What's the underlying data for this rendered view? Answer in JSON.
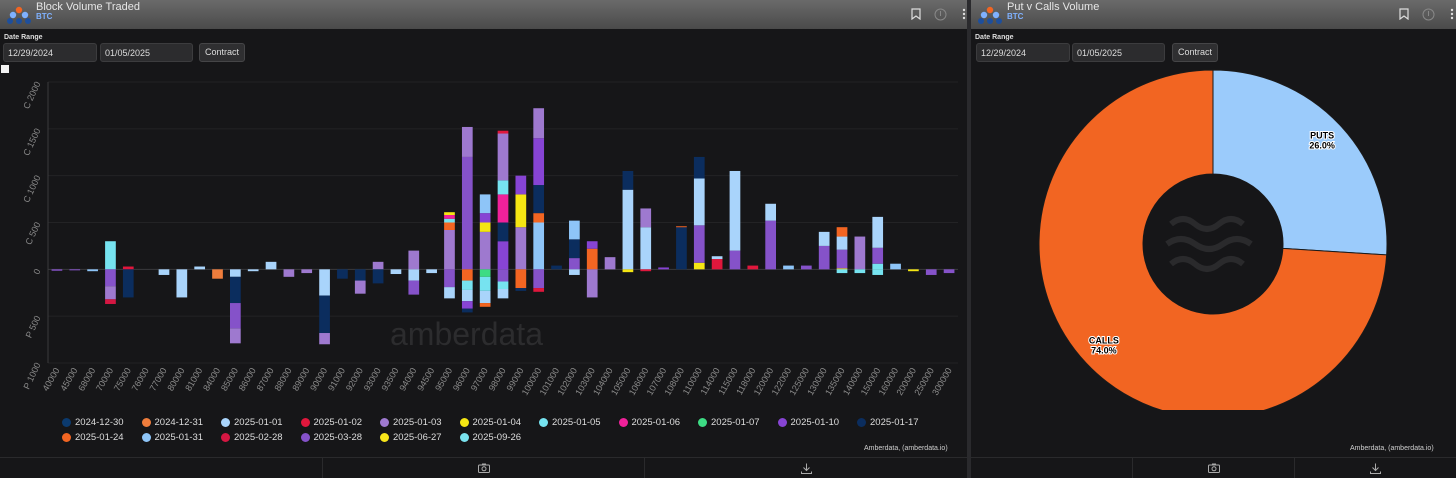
{
  "left": {
    "title": "Block Volume Traded",
    "asset": "BTC",
    "date_range_label": "Date Range",
    "date_from": "12/29/2024",
    "date_to": "01/05/2025",
    "contract_button": "Contract",
    "credit": "Amberdata, (amberdata.io)",
    "watermark": "amberdata",
    "icons": [
      "bookmark-icon",
      "info-icon",
      "more-icon",
      "camera-icon",
      "download-icon"
    ]
  },
  "right": {
    "title": "Put v Calls Volume",
    "asset": "BTC",
    "date_range_label": "Date Range",
    "date_from": "12/29/2024",
    "date_to": "01/05/2025",
    "contract_button": "Contract",
    "credit": "Amberdata, (amberdata.io)",
    "icons": [
      "bookmark-icon",
      "info-icon",
      "more-icon",
      "camera-icon",
      "download-icon"
    ]
  },
  "colors": {
    "2024-12-30": "#0b3a6e",
    "2024-12-31": "#ef7d3c",
    "2025-01-01": "#a9d4fb",
    "2025-01-02": "#e0173c",
    "2025-01-03": "#9e79cf",
    "2025-01-04": "#f5e613",
    "2025-01-05": "#76e3f0",
    "2025-01-06": "#f0219a",
    "2025-01-07": "#3ddc84",
    "2025-01-10": "#8744d4",
    "2025-01-17": "#0b2d5e",
    "2025-01-24": "#f26522",
    "2025-01-31": "#8ec5f8",
    "2025-02-28": "#d41742",
    "2025-03-28": "#8552c9",
    "2025-06-27": "#f7e51a",
    "2025-09-26": "#7ae2ee"
  },
  "chart_data": [
    {
      "type": "bar",
      "title": "Block Volume Traded",
      "stacked": true,
      "ylabel_call": "C",
      "ylabel_put": "P",
      "ylim": [
        -1000,
        2000
      ],
      "yticks": [
        {
          "v": 2000,
          "label": "C 2000"
        },
        {
          "v": 1500,
          "label": "C 1500"
        },
        {
          "v": 1000,
          "label": "C 1000"
        },
        {
          "v": 500,
          "label": "C 500"
        },
        {
          "v": 0,
          "label": "0"
        },
        {
          "v": -500,
          "label": "P 500"
        },
        {
          "v": -1000,
          "label": "P 1000"
        }
      ],
      "categories": [
        "40000",
        "45000",
        "68000",
        "70000",
        "75000",
        "76000",
        "77000",
        "80000",
        "81000",
        "84000",
        "85000",
        "86000",
        "87000",
        "88000",
        "89000",
        "90000",
        "91000",
        "92000",
        "93000",
        "93500",
        "94000",
        "94500",
        "95000",
        "96000",
        "97000",
        "98000",
        "99000",
        "100000",
        "101000",
        "102000",
        "103000",
        "104000",
        "105000",
        "106000",
        "107000",
        "108000",
        "110000",
        "114000",
        "115000",
        "118000",
        "120000",
        "122000",
        "125000",
        "130000",
        "135000",
        "140000",
        "150000",
        "160000",
        "200000",
        "250000",
        "300000"
      ],
      "bars": [
        {
          "cat": "40000",
          "segments": [
            [
              "2025-03-28",
              -15
            ]
          ]
        },
        {
          "cat": "45000",
          "segments": [
            [
              "2025-03-28",
              -10
            ]
          ]
        },
        {
          "cat": "68000",
          "segments": [
            [
              "2025-01-31",
              -20
            ]
          ]
        },
        {
          "cat": "70000",
          "segments": [
            [
              "2025-01-05",
              300
            ],
            [
              "2025-03-28",
              -180
            ],
            [
              "2025-01-03",
              -140
            ],
            [
              "2025-02-28",
              -50
            ]
          ]
        },
        {
          "cat": "75000",
          "segments": [
            [
              "2025-01-02",
              30
            ],
            [
              "2025-01-17",
              -300
            ]
          ]
        },
        {
          "cat": "76000",
          "segments": []
        },
        {
          "cat": "77000",
          "segments": [
            [
              "2025-01-01",
              -60
            ]
          ]
        },
        {
          "cat": "80000",
          "segments": [
            [
              "2025-01-01",
              -300
            ]
          ]
        },
        {
          "cat": "81000",
          "segments": [
            [
              "2025-01-01",
              30
            ]
          ]
        },
        {
          "cat": "84000",
          "segments": [
            [
              "2024-12-31",
              -100
            ]
          ]
        },
        {
          "cat": "85000",
          "segments": [
            [
              "2025-01-01",
              -80
            ],
            [
              "2025-01-17",
              -280
            ],
            [
              "2025-03-28",
              -270
            ],
            [
              "2025-01-03",
              -160
            ]
          ]
        },
        {
          "cat": "86000",
          "segments": [
            [
              "2025-01-01",
              -20
            ]
          ]
        },
        {
          "cat": "87000",
          "segments": [
            [
              "2025-01-01",
              80
            ]
          ]
        },
        {
          "cat": "88000",
          "segments": [
            [
              "2025-01-03",
              -80
            ]
          ]
        },
        {
          "cat": "89000",
          "segments": [
            [
              "2025-01-03",
              -40
            ]
          ]
        },
        {
          "cat": "90000",
          "segments": [
            [
              "2025-01-01",
              -280
            ],
            [
              "2025-01-17",
              -400
            ],
            [
              "2025-01-03",
              -120
            ]
          ]
        },
        {
          "cat": "91000",
          "segments": [
            [
              "2025-01-17",
              -100
            ]
          ]
        },
        {
          "cat": "92000",
          "segments": [
            [
              "2025-01-17",
              -120
            ],
            [
              "2025-01-03",
              -140
            ]
          ]
        },
        {
          "cat": "93000",
          "segments": [
            [
              "2025-01-03",
              80
            ],
            [
              "2025-01-17",
              -150
            ]
          ]
        },
        {
          "cat": "93500",
          "segments": [
            [
              "2025-01-01",
              -50
            ]
          ]
        },
        {
          "cat": "94000",
          "segments": [
            [
              "2025-01-03",
              200
            ],
            [
              "2025-01-01",
              -120
            ],
            [
              "2025-03-28",
              -150
            ]
          ]
        },
        {
          "cat": "94500",
          "segments": [
            [
              "2025-01-01",
              -40
            ]
          ]
        },
        {
          "cat": "95000",
          "segments": [
            [
              "2025-01-03",
              420
            ],
            [
              "2025-01-24",
              80
            ],
            [
              "2025-01-05",
              40
            ],
            [
              "2025-01-06",
              40
            ],
            [
              "2025-01-04",
              30
            ],
            [
              "2025-03-28",
              -190
            ],
            [
              "2025-01-01",
              -120
            ]
          ]
        },
        {
          "cat": "96000",
          "segments": [
            [
              "2025-03-28",
              1200
            ],
            [
              "2025-01-03",
              320
            ],
            [
              "2025-01-24",
              -120
            ],
            [
              "2025-01-05",
              -100
            ],
            [
              "2025-01-01",
              -120
            ],
            [
              "2025-01-10",
              -80
            ],
            [
              "2025-01-17",
              -40
            ]
          ]
        },
        {
          "cat": "97000",
          "segments": [
            [
              "2025-01-03",
              400
            ],
            [
              "2025-01-04",
              100
            ],
            [
              "2025-01-10",
              100
            ],
            [
              "2025-01-31",
              200
            ],
            [
              "2025-01-07",
              -80
            ],
            [
              "2025-01-05",
              -150
            ],
            [
              "2025-01-01",
              -130
            ],
            [
              "2025-01-24",
              -40
            ]
          ]
        },
        {
          "cat": "98000",
          "segments": [
            [
              "2025-01-10",
              300
            ],
            [
              "2025-01-17",
              200
            ],
            [
              "2025-01-06",
              300
            ],
            [
              "2025-01-05",
              150
            ],
            [
              "2025-01-03",
              500
            ],
            [
              "2025-01-02",
              30
            ],
            [
              "2025-03-28",
              -130
            ],
            [
              "2025-01-05",
              -80
            ],
            [
              "2025-01-01",
              -100
            ]
          ]
        },
        {
          "cat": "99000",
          "segments": [
            [
              "2025-01-03",
              450
            ],
            [
              "2025-01-04",
              350
            ],
            [
              "2025-01-10",
              200
            ],
            [
              "2025-01-24",
              -200
            ],
            [
              "2025-01-17",
              -30
            ]
          ]
        },
        {
          "cat": "100000",
          "segments": [
            [
              "2025-01-31",
              500
            ],
            [
              "2025-01-24",
              100
            ],
            [
              "2025-01-17",
              300
            ],
            [
              "2025-01-10",
              500
            ],
            [
              "2025-01-03",
              320
            ],
            [
              "2025-03-28",
              -200
            ],
            [
              "2025-01-02",
              -40
            ]
          ]
        },
        {
          "cat": "101000",
          "segments": [
            [
              "2025-01-17",
              40
            ]
          ]
        },
        {
          "cat": "102000",
          "segments": [
            [
              "2025-03-28",
              120
            ],
            [
              "2025-01-17",
              200
            ],
            [
              "2025-01-31",
              200
            ],
            [
              "2025-01-01",
              -60
            ]
          ]
        },
        {
          "cat": "103000",
          "segments": [
            [
              "2025-01-24",
              220
            ],
            [
              "2025-01-10",
              80
            ],
            [
              "2025-01-03",
              -300
            ]
          ]
        },
        {
          "cat": "104000",
          "segments": [
            [
              "2025-01-03",
              130
            ]
          ]
        },
        {
          "cat": "105000",
          "segments": [
            [
              "2025-01-01",
              850
            ],
            [
              "2025-01-17",
              200
            ],
            [
              "2025-01-04",
              -30
            ]
          ]
        },
        {
          "cat": "106000",
          "segments": [
            [
              "2025-01-01",
              450
            ],
            [
              "2025-01-03",
              200
            ],
            [
              "2025-01-02",
              -20
            ]
          ]
        },
        {
          "cat": "107000",
          "segments": [
            [
              "2025-01-10",
              20
            ]
          ]
        },
        {
          "cat": "108000",
          "segments": [
            [
              "2025-01-17",
              450
            ],
            [
              "2025-01-24",
              10
            ]
          ]
        },
        {
          "cat": "110000",
          "segments": [
            [
              "2025-01-04",
              70
            ],
            [
              "2025-03-28",
              400
            ],
            [
              "2025-01-01",
              500
            ],
            [
              "2025-01-17",
              230
            ]
          ]
        },
        {
          "cat": "114000",
          "segments": [
            [
              "2025-01-02",
              110
            ],
            [
              "2025-01-01",
              30
            ]
          ]
        },
        {
          "cat": "115000",
          "segments": [
            [
              "2025-03-28",
              200
            ],
            [
              "2025-01-01",
              850
            ]
          ]
        },
        {
          "cat": "118000",
          "segments": [
            [
              "2025-01-02",
              40
            ]
          ]
        },
        {
          "cat": "120000",
          "segments": [
            [
              "2025-03-28",
              520
            ],
            [
              "2025-01-01",
              180
            ]
          ]
        },
        {
          "cat": "122000",
          "segments": [
            [
              "2025-01-31",
              40
            ]
          ]
        },
        {
          "cat": "125000",
          "segments": [
            [
              "2025-03-28",
              40
            ]
          ]
        },
        {
          "cat": "130000",
          "segments": [
            [
              "2025-03-28",
              250
            ],
            [
              "2025-01-01",
              150
            ]
          ]
        },
        {
          "cat": "135000",
          "segments": [
            [
              "2025-01-04",
              10
            ],
            [
              "2025-03-28",
              200
            ],
            [
              "2025-01-01",
              140
            ],
            [
              "2025-01-24",
              100
            ],
            [
              "2025-01-05",
              -40
            ]
          ]
        },
        {
          "cat": "140000",
          "segments": [
            [
              "2025-01-03",
              350
            ],
            [
              "2025-01-05",
              -40
            ]
          ]
        },
        {
          "cat": "150000",
          "segments": [
            [
              "2025-01-05",
              60
            ],
            [
              "2025-03-28",
              170
            ],
            [
              "2025-01-01",
              330
            ],
            [
              "2025-01-05",
              -60
            ]
          ]
        },
        {
          "cat": "160000",
          "segments": [
            [
              "2025-01-31",
              60
            ]
          ]
        },
        {
          "cat": "200000",
          "segments": [
            [
              "2025-01-04",
              -20
            ]
          ]
        },
        {
          "cat": "250000",
          "segments": [
            [
              "2025-03-28",
              -60
            ]
          ]
        },
        {
          "cat": "300000",
          "segments": [
            [
              "2025-03-28",
              -40
            ]
          ]
        }
      ],
      "legend": [
        [
          "2024-12-30",
          "2024-12-31",
          "2025-01-01",
          "2025-01-02",
          "2025-01-03",
          "2025-01-04",
          "2025-01-05",
          "2025-01-06",
          "2025-01-07",
          "2025-01-10",
          "2025-01-17"
        ],
        [
          "2025-01-24",
          "2025-01-31",
          "2025-02-28",
          "2025-03-28",
          "2025-06-27",
          "2025-09-26"
        ]
      ]
    },
    {
      "type": "pie",
      "title": "Put v Calls Volume",
      "donut": true,
      "slices": [
        {
          "name": "PUTS",
          "value": 26.0,
          "label": "26.0%",
          "color": "#9bcbfb"
        },
        {
          "name": "CALLS",
          "value": 74.0,
          "label": "74.0%",
          "color": "#f26522"
        }
      ]
    }
  ]
}
